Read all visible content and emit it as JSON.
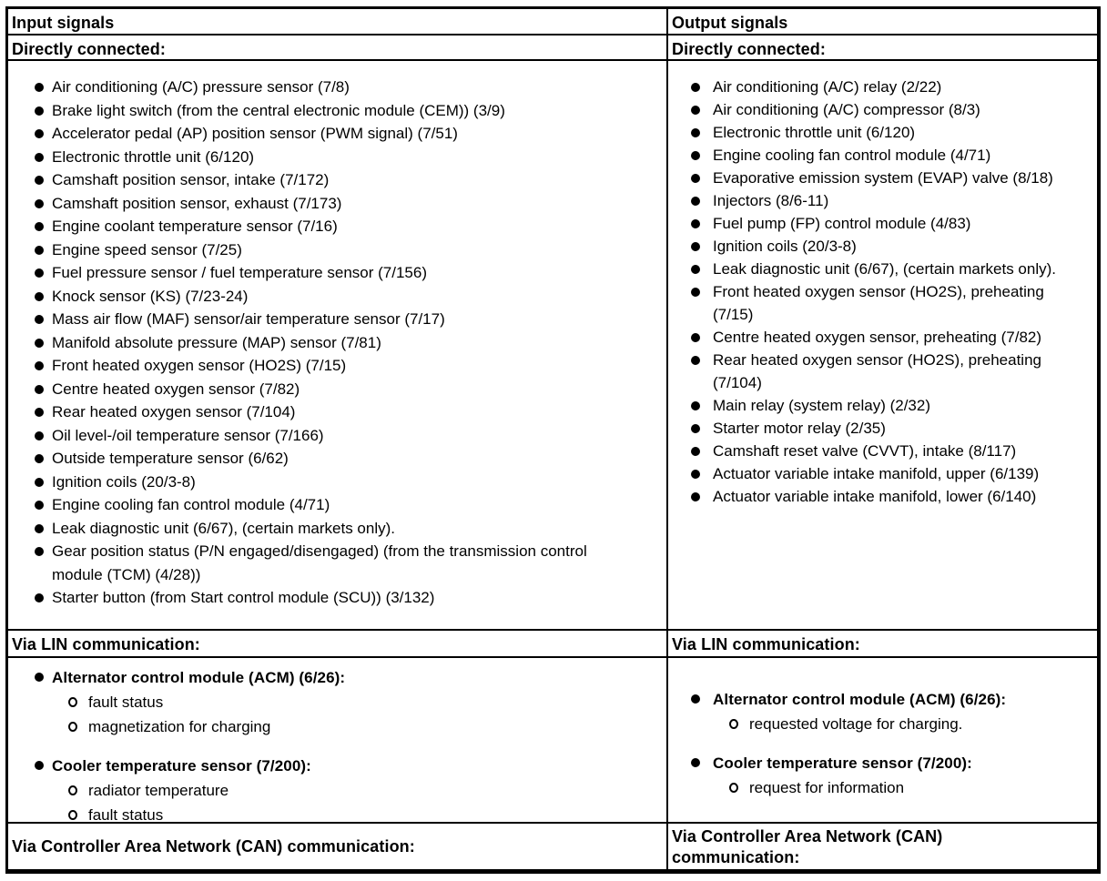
{
  "input": {
    "header": "Input signals",
    "directly_connected": {
      "label": "Directly connected:",
      "items": [
        "Air conditioning (A/C) pressure sensor (7/8)",
        "Brake light switch (from the central electronic module (CEM)) (3/9)",
        "Accelerator pedal (AP) position sensor (PWM signal) (7/51)",
        "Electronic throttle unit (6/120)",
        "Camshaft position sensor, intake (7/172)",
        "Camshaft position sensor, exhaust (7/173)",
        "Engine coolant temperature sensor (7/16)",
        "Engine speed sensor (7/25)",
        "Fuel pressure sensor / fuel temperature sensor (7/156)",
        "Knock sensor (KS) (7/23-24)",
        "Mass air flow (MAF) sensor/air temperature sensor (7/17)",
        "Manifold absolute pressure (MAP) sensor (7/81)",
        "Front heated oxygen sensor (HO2S) (7/15)",
        "Centre heated oxygen sensor (7/82)",
        "Rear heated oxygen sensor (7/104)",
        "Oil level-/oil temperature sensor (7/166)",
        "Outside temperature sensor (6/62)",
        "Ignition coils (20/3-8)",
        "Engine cooling fan control module (4/71)",
        "Leak diagnostic unit (6/67), (certain markets only).",
        "Gear position status (P/N engaged/disengaged) (from the transmission control module (TCM) (4/28))",
        "Starter button (from Start control module (SCU)) (3/132)"
      ]
    },
    "lin": {
      "label": "Via LIN communication:",
      "groups": [
        {
          "title": "Alternator control module (ACM) (6/26):",
          "items": [
            "fault status",
            "magnetization for charging"
          ]
        },
        {
          "title": "Cooler temperature sensor (7/200):",
          "items": [
            "radiator temperature",
            "fault status"
          ]
        }
      ]
    },
    "can": {
      "label": "Via Controller Area Network (CAN) communication:"
    }
  },
  "output": {
    "header": "Output signals",
    "directly_connected": {
      "label": "Directly connected:",
      "items": [
        "Air conditioning (A/C) relay (2/22)",
        "Air conditioning (A/C) compressor (8/3)",
        "Electronic throttle unit (6/120)",
        "Engine cooling fan control module (4/71)",
        "Evaporative emission system (EVAP) valve (8/18)",
        "Injectors (8/6-11)",
        "Fuel pump (FP) control module (4/83)",
        "Ignition coils (20/3-8)",
        "Leak diagnostic unit (6/67), (certain markets only).",
        "Front heated oxygen sensor (HO2S), preheating (7/15)",
        "Centre heated oxygen sensor, preheating (7/82)",
        "Rear heated oxygen sensor (HO2S), preheating (7/104)",
        "Main relay (system relay) (2/32)",
        "Starter motor relay (2/35)",
        "Camshaft reset valve (CVVT), intake (8/117)",
        "Actuator variable intake manifold, upper (6/139)",
        "Actuator variable intake manifold, lower (6/140)"
      ]
    },
    "lin": {
      "label": "Via LIN communication:",
      "groups": [
        {
          "title": "Alternator control module (ACM) (6/26):",
          "items": [
            "requested voltage for charging."
          ]
        },
        {
          "title": "Cooler temperature sensor (7/200):",
          "items": [
            "request for information"
          ]
        }
      ]
    },
    "can": {
      "label": "Via Controller Area Network (CAN) communication:"
    }
  }
}
